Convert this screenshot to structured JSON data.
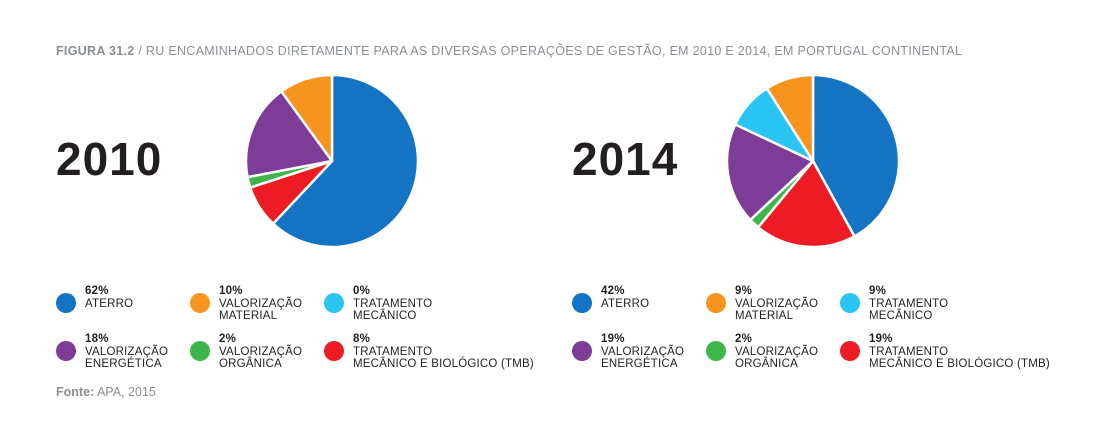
{
  "caption": {
    "figure": "FIGURA 31.2",
    "separator": " / ",
    "text": "RU ENCAMINHADOS DIRETAMENTE PARA AS DIVERSAS OPERAÇÕES DE GESTÃO, EM 2010 E 2014, EM PORTUGAL CONTINENTAL"
  },
  "source": {
    "label": "Fonte:",
    "text": " APA, 2015"
  },
  "colors": {
    "aterro": "#1573c3",
    "valorizacao_material": "#f7941d",
    "tratamento_mecanico": "#2bc5f4",
    "valorizacao_energetica": "#7d3c98",
    "valorizacao_organica": "#3cb54a",
    "tmb": "#ed1c24"
  },
  "chart_data": [
    {
      "type": "pie",
      "title": "2010",
      "categories": [
        "ATERRO",
        "VALORIZAÇÃO MATERIAL",
        "TRATAMENTO MECÂNICO",
        "VALORIZAÇÃO ENERGÉTICA",
        "VALORIZAÇÃO ORGÂNICA",
        "TRATAMENTO MECÂNICO E BIOLÓGICO (TMB)"
      ],
      "values": [
        62,
        10,
        0,
        18,
        2,
        8
      ],
      "legend": [
        {
          "pct": "62%",
          "label": "ATERRO",
          "color": "#1573c3"
        },
        {
          "pct": "10%",
          "label": "VALORIZAÇÃO\nMATERIAL",
          "color": "#f7941d"
        },
        {
          "pct": "0%",
          "label": "TRATAMENTO\nMECÂNICO",
          "color": "#2bc5f4"
        },
        {
          "pct": "18%",
          "label": "VALORIZAÇÃO\nENERGÉTICA",
          "color": "#7d3c98"
        },
        {
          "pct": "2%",
          "label": "VALORIZAÇÃO\nORGÂNICA",
          "color": "#3cb54a"
        },
        {
          "pct": "8%",
          "label": "TRATAMENTO\nMECÂNICO E BIOLÓGICO (TMB)",
          "color": "#ed1c24"
        }
      ]
    },
    {
      "type": "pie",
      "title": "2014",
      "categories": [
        "ATERRO",
        "VALORIZAÇÃO MATERIAL",
        "TRATAMENTO MECÂNICO",
        "VALORIZAÇÃO ENERGÉTICA",
        "VALORIZAÇÃO ORGÂNICA",
        "TRATAMENTO MECÂNICO E BIOLÓGICO (TMB)"
      ],
      "values": [
        42,
        9,
        9,
        19,
        2,
        19
      ],
      "legend": [
        {
          "pct": "42%",
          "label": "ATERRO",
          "color": "#1573c3"
        },
        {
          "pct": "9%",
          "label": "VALORIZAÇÃO\nMATERIAL",
          "color": "#f7941d"
        },
        {
          "pct": "9%",
          "label": "TRATAMENTO\nMECÂNICO",
          "color": "#2bc5f4"
        },
        {
          "pct": "19%",
          "label": "VALORIZAÇÃO\nENERGÉTICA",
          "color": "#7d3c98"
        },
        {
          "pct": "2%",
          "label": "VALORIZAÇÃO\nORGÂNICA",
          "color": "#3cb54a"
        },
        {
          "pct": "19%",
          "label": "TRATAMENTO\nMECÂNICO E BIOLÓGICO (TMB)",
          "color": "#ed1c24"
        }
      ]
    }
  ]
}
